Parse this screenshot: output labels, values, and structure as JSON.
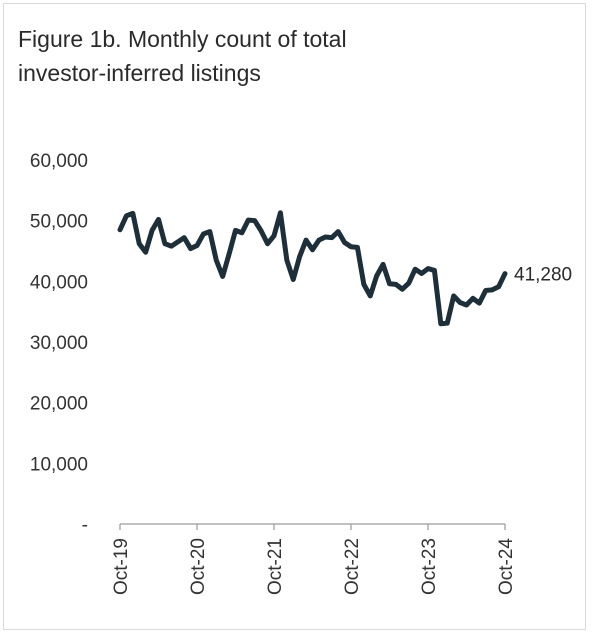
{
  "figure": {
    "title_line1": "Figure 1b. Monthly count of total",
    "title_line2": "investor-inferred listings"
  },
  "colors": {
    "line": "#1f2f3a",
    "axis": "#9a9a9a",
    "text": "#333333"
  },
  "chart_data": {
    "type": "line",
    "title": "Figure 1b. Monthly count of total investor-inferred listings",
    "xlabel": "",
    "ylabel": "",
    "ylim": [
      0,
      60000
    ],
    "y_ticks": [
      {
        "value": 0,
        "label": "-"
      },
      {
        "value": 10000,
        "label": "10,000"
      },
      {
        "value": 20000,
        "label": "20,000"
      },
      {
        "value": 30000,
        "label": "30,000"
      },
      {
        "value": 40000,
        "label": "40,000"
      },
      {
        "value": 50000,
        "label": "50,000"
      },
      {
        "value": 60000,
        "label": "60,000"
      }
    ],
    "x_tick_labels": [
      "Oct-19",
      "Oct-20",
      "Oct-21",
      "Oct-22",
      "Oct-23",
      "Oct-24"
    ],
    "x_tick_indices": [
      0,
      12,
      24,
      36,
      48,
      60
    ],
    "end_label": "41,280",
    "series": [
      {
        "values": [
          48500,
          50800,
          51200,
          46200,
          44800,
          48400,
          50200,
          46200,
          45800,
          46500,
          47200,
          45400,
          45900,
          47800,
          48200,
          43500,
          40800,
          44500,
          48400,
          48000,
          50100,
          50000,
          48300,
          46200,
          47500,
          51300,
          43500,
          40300,
          44100,
          46800,
          45200,
          46800,
          47300,
          47200,
          48200,
          46400,
          45700,
          45600,
          39500,
          37600,
          40900,
          42800,
          39600,
          39500,
          38700,
          39700,
          42000,
          41300,
          42100,
          41800,
          33000,
          33100,
          37600,
          36500,
          36100,
          37200,
          36400,
          38500,
          38600,
          39100,
          41280
        ]
      }
    ]
  }
}
